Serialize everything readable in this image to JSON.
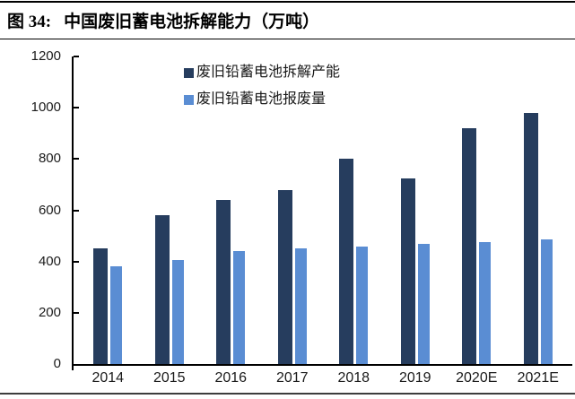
{
  "header": {
    "figure_label": "图 34:",
    "title": "中国废旧蓄电池拆解能力（万吨）"
  },
  "chart_data": {
    "type": "bar",
    "title": "中国废旧蓄电池拆解能力（万吨）",
    "unit": "万吨",
    "categories": [
      "2014",
      "2015",
      "2016",
      "2017",
      "2018",
      "2019",
      "2020E",
      "2021E"
    ],
    "series": [
      {
        "name": "废旧铅蓄电池拆解产能",
        "color": "#263D5E",
        "values": [
          450,
          580,
          640,
          680,
          800,
          725,
          920,
          980
        ]
      },
      {
        "name": "废旧铅蓄电池报废量",
        "color": "#5A8DD3",
        "values": [
          380,
          405,
          440,
          450,
          460,
          470,
          475,
          485
        ]
      }
    ],
    "ylim": [
      0,
      1200
    ],
    "yticks": [
      0,
      200,
      400,
      600,
      800,
      1000,
      1200
    ],
    "grid": false,
    "legend_position": "top-center"
  },
  "colors": {
    "axis": "#000000",
    "text": "#1a1a1a"
  }
}
